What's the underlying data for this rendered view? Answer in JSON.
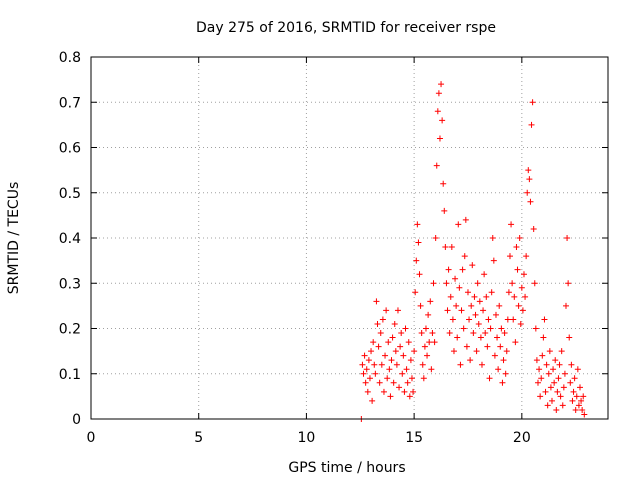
{
  "chart_data": {
    "type": "scatter",
    "title": "Day 275 of 2016, SRMTID for receiver rspe",
    "xlabel": "GPS time / hours",
    "ylabel": "SRMTID / TECUs",
    "xlim": [
      0,
      24
    ],
    "ylim": [
      0,
      0.8
    ],
    "x_ticks": [
      "0",
      "5",
      "10",
      "15",
      "20"
    ],
    "x_tick_values": [
      0,
      5,
      10,
      15,
      20
    ],
    "y_ticks": [
      "0",
      "0.1",
      "0.2",
      "0.3",
      "0.4",
      "0.5",
      "0.6",
      "0.7",
      "0.8"
    ],
    "y_tick_values": [
      0,
      0.1,
      0.2,
      0.3,
      0.4,
      0.5,
      0.6,
      0.7,
      0.8
    ],
    "grid": true,
    "marker": "plus",
    "color": "#ff0000",
    "series": [
      {
        "points": [
          [
            12.55,
            0.0
          ],
          [
            12.6,
            0.12
          ],
          [
            12.65,
            0.1
          ],
          [
            12.7,
            0.14
          ],
          [
            12.75,
            0.08
          ],
          [
            12.8,
            0.11
          ],
          [
            12.85,
            0.06
          ],
          [
            12.9,
            0.13
          ],
          [
            12.95,
            0.09
          ],
          [
            13.0,
            0.15
          ],
          [
            13.05,
            0.04
          ],
          [
            13.1,
            0.17
          ],
          [
            13.15,
            0.12
          ],
          [
            13.2,
            0.1
          ],
          [
            13.25,
            0.26
          ],
          [
            13.3,
            0.21
          ],
          [
            13.35,
            0.16
          ],
          [
            13.4,
            0.08
          ],
          [
            13.45,
            0.19
          ],
          [
            13.5,
            0.12
          ],
          [
            13.55,
            0.22
          ],
          [
            13.6,
            0.06
          ],
          [
            13.65,
            0.14
          ],
          [
            13.7,
            0.24
          ],
          [
            13.75,
            0.09
          ],
          [
            13.8,
            0.17
          ],
          [
            13.85,
            0.11
          ],
          [
            13.9,
            0.05
          ],
          [
            13.95,
            0.13
          ],
          [
            14.0,
            0.18
          ],
          [
            14.05,
            0.08
          ],
          [
            14.1,
            0.21
          ],
          [
            14.15,
            0.15
          ],
          [
            14.2,
            0.12
          ],
          [
            14.25,
            0.24
          ],
          [
            14.3,
            0.07
          ],
          [
            14.35,
            0.16
          ],
          [
            14.4,
            0.19
          ],
          [
            14.45,
            0.1
          ],
          [
            14.5,
            0.14
          ],
          [
            14.55,
            0.06
          ],
          [
            14.6,
            0.2
          ],
          [
            14.65,
            0.11
          ],
          [
            14.7,
            0.08
          ],
          [
            14.75,
            0.17
          ],
          [
            14.8,
            0.05
          ],
          [
            14.85,
            0.13
          ],
          [
            14.9,
            0.09
          ],
          [
            14.95,
            0.06
          ],
          [
            15.0,
            0.15
          ],
          [
            15.05,
            0.28
          ],
          [
            15.1,
            0.35
          ],
          [
            15.15,
            0.43
          ],
          [
            15.2,
            0.39
          ],
          [
            15.25,
            0.32
          ],
          [
            15.3,
            0.25
          ],
          [
            15.35,
            0.19
          ],
          [
            15.4,
            0.12
          ],
          [
            15.45,
            0.09
          ],
          [
            15.5,
            0.16
          ],
          [
            15.55,
            0.2
          ],
          [
            15.6,
            0.14
          ],
          [
            15.65,
            0.23
          ],
          [
            15.7,
            0.17
          ],
          [
            15.75,
            0.26
          ],
          [
            15.8,
            0.11
          ],
          [
            15.85,
            0.19
          ],
          [
            15.9,
            0.3
          ],
          [
            15.95,
            0.17
          ],
          [
            16.0,
            0.4
          ],
          [
            16.05,
            0.56
          ],
          [
            16.1,
            0.68
          ],
          [
            16.15,
            0.72
          ],
          [
            16.2,
            0.62
          ],
          [
            16.25,
            0.74
          ],
          [
            16.3,
            0.66
          ],
          [
            16.35,
            0.52
          ],
          [
            16.4,
            0.46
          ],
          [
            16.45,
            0.38
          ],
          [
            16.5,
            0.3
          ],
          [
            16.55,
            0.24
          ],
          [
            16.6,
            0.33
          ],
          [
            16.65,
            0.19
          ],
          [
            16.7,
            0.27
          ],
          [
            16.75,
            0.38
          ],
          [
            16.8,
            0.22
          ],
          [
            16.85,
            0.15
          ],
          [
            16.9,
            0.31
          ],
          [
            16.95,
            0.25
          ],
          [
            17.0,
            0.18
          ],
          [
            17.05,
            0.43
          ],
          [
            17.1,
            0.29
          ],
          [
            17.15,
            0.12
          ],
          [
            17.2,
            0.24
          ],
          [
            17.25,
            0.33
          ],
          [
            17.3,
            0.2
          ],
          [
            17.35,
            0.36
          ],
          [
            17.4,
            0.44
          ],
          [
            17.45,
            0.16
          ],
          [
            17.5,
            0.28
          ],
          [
            17.55,
            0.22
          ],
          [
            17.6,
            0.13
          ],
          [
            17.65,
            0.25
          ],
          [
            17.7,
            0.34
          ],
          [
            17.75,
            0.19
          ],
          [
            17.8,
            0.27
          ],
          [
            17.85,
            0.23
          ],
          [
            17.9,
            0.15
          ],
          [
            17.95,
            0.3
          ],
          [
            18.0,
            0.21
          ],
          [
            18.05,
            0.26
          ],
          [
            18.1,
            0.18
          ],
          [
            18.15,
            0.12
          ],
          [
            18.2,
            0.24
          ],
          [
            18.25,
            0.32
          ],
          [
            18.3,
            0.19
          ],
          [
            18.35,
            0.27
          ],
          [
            18.4,
            0.16
          ],
          [
            18.45,
            0.22
          ],
          [
            18.5,
            0.09
          ],
          [
            18.55,
            0.2
          ],
          [
            18.6,
            0.28
          ],
          [
            18.65,
            0.4
          ],
          [
            18.7,
            0.35
          ],
          [
            18.75,
            0.14
          ],
          [
            18.8,
            0.23
          ],
          [
            18.85,
            0.18
          ],
          [
            18.9,
            0.11
          ],
          [
            18.95,
            0.25
          ],
          [
            19.0,
            0.16
          ],
          [
            19.05,
            0.2
          ],
          [
            19.1,
            0.08
          ],
          [
            19.15,
            0.13
          ],
          [
            19.2,
            0.19
          ],
          [
            19.25,
            0.1
          ],
          [
            19.3,
            0.15
          ],
          [
            19.35,
            0.22
          ],
          [
            19.4,
            0.28
          ],
          [
            19.45,
            0.36
          ],
          [
            19.5,
            0.43
          ],
          [
            19.55,
            0.3
          ],
          [
            19.6,
            0.22
          ],
          [
            19.65,
            0.27
          ],
          [
            19.7,
            0.17
          ],
          [
            19.75,
            0.38
          ],
          [
            19.8,
            0.33
          ],
          [
            19.85,
            0.25
          ],
          [
            19.9,
            0.4
          ],
          [
            19.95,
            0.21
          ],
          [
            20.0,
            0.29
          ],
          [
            20.05,
            0.24
          ],
          [
            20.1,
            0.32
          ],
          [
            20.15,
            0.27
          ],
          [
            20.2,
            0.36
          ],
          [
            20.25,
            0.5
          ],
          [
            20.3,
            0.55
          ],
          [
            20.35,
            0.53
          ],
          [
            20.4,
            0.48
          ],
          [
            20.45,
            0.65
          ],
          [
            20.5,
            0.7
          ],
          [
            20.55,
            0.42
          ],
          [
            20.6,
            0.3
          ],
          [
            20.65,
            0.2
          ],
          [
            20.7,
            0.13
          ],
          [
            20.75,
            0.08
          ],
          [
            20.8,
            0.11
          ],
          [
            20.85,
            0.05
          ],
          [
            20.9,
            0.09
          ],
          [
            20.95,
            0.14
          ],
          [
            21.0,
            0.18
          ],
          [
            21.05,
            0.22
          ],
          [
            21.1,
            0.06
          ],
          [
            21.15,
            0.12
          ],
          [
            21.2,
            0.03
          ],
          [
            21.25,
            0.1
          ],
          [
            21.3,
            0.15
          ],
          [
            21.35,
            0.07
          ],
          [
            21.4,
            0.04
          ],
          [
            21.45,
            0.11
          ],
          [
            21.5,
            0.08
          ],
          [
            21.55,
            0.13
          ],
          [
            21.6,
            0.02
          ],
          [
            21.65,
            0.06
          ],
          [
            21.7,
            0.09
          ],
          [
            21.75,
            0.12
          ],
          [
            21.8,
            0.05
          ],
          [
            21.85,
            0.15
          ],
          [
            21.9,
            0.03
          ],
          [
            21.95,
            0.07
          ],
          [
            22.0,
            0.1
          ],
          [
            22.05,
            0.25
          ],
          [
            22.1,
            0.4
          ],
          [
            22.15,
            0.3
          ],
          [
            22.2,
            0.18
          ],
          [
            22.25,
            0.08
          ],
          [
            22.3,
            0.12
          ],
          [
            22.35,
            0.04
          ],
          [
            22.4,
            0.06
          ],
          [
            22.45,
            0.09
          ],
          [
            22.5,
            0.02
          ],
          [
            22.55,
            0.05
          ],
          [
            22.6,
            0.11
          ],
          [
            22.65,
            0.03
          ],
          [
            22.7,
            0.07
          ],
          [
            22.75,
            0.04
          ],
          [
            22.8,
            0.02
          ],
          [
            22.85,
            0.05
          ],
          [
            22.9,
            0.01
          ]
        ]
      }
    ]
  }
}
